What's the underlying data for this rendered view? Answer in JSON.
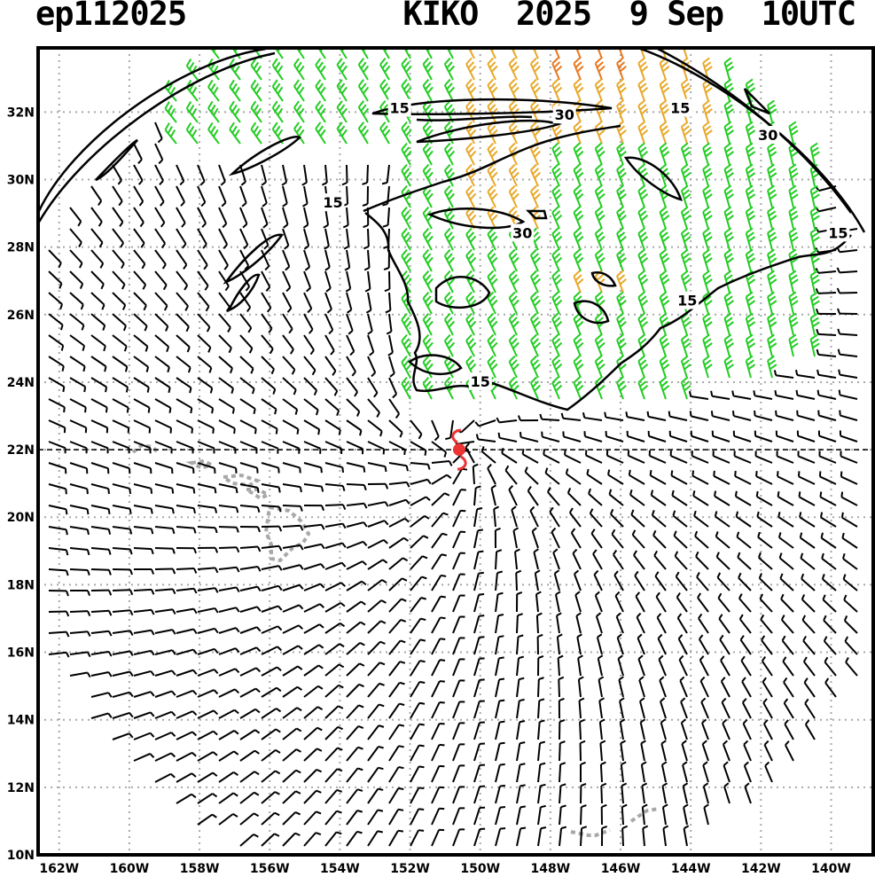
{
  "header": {
    "storm_id": "ep112025",
    "storm_name": "KIKO",
    "year": "2025",
    "date": "9 Sep",
    "time": "10UTC"
  },
  "map": {
    "lon_range_deg_west": [
      162.6,
      138.8
    ],
    "lat_range_deg_north": [
      10,
      33.9
    ],
    "lat_ticks": [
      "10N",
      "12N",
      "14N",
      "16N",
      "18N",
      "20N",
      "22N",
      "24N",
      "26N",
      "28N",
      "30N",
      "32N"
    ],
    "lon_ticks": [
      "162W",
      "160W",
      "158W",
      "156W",
      "154W",
      "152W",
      "150W",
      "148W",
      "146W",
      "144W",
      "142W",
      "140W"
    ],
    "grid": "dotted-gray",
    "storm_center": {
      "lat": 22.0,
      "lon_w": 150.6,
      "symbol": "hurricane-symbol"
    },
    "contour_labels": [
      {
        "text": "15",
        "near": "32.1N 152.3W"
      },
      {
        "text": "30",
        "near": "31.9N 147.6W"
      },
      {
        "text": "15",
        "near": "32.1N 144.3W"
      },
      {
        "text": "30",
        "near": "31.3N 141.8W"
      },
      {
        "text": "15",
        "near": "29.3N 154.2W"
      },
      {
        "text": "30",
        "near": "28.4N 148.8W"
      },
      {
        "text": "15",
        "near": "28.4N 139.8W"
      },
      {
        "text": "15",
        "near": "26.4N 144.1W"
      },
      {
        "text": "15",
        "near": "24.0N 150.0W"
      }
    ],
    "wind_colors": {
      "weak": "#000000",
      "moderate": "#22cc22",
      "strong": "#e8a828",
      "very_strong": "#e87820"
    },
    "storm_color": "#ee3333",
    "land_color": "#a8a8a8",
    "contour_color": "#000000"
  }
}
